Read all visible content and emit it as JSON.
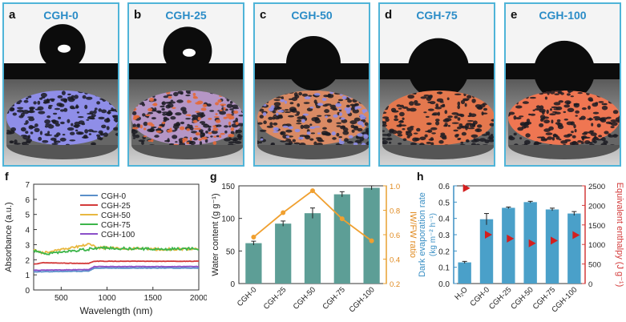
{
  "panels": [
    {
      "letter": "a",
      "title": "CGH-0",
      "color": "#8f8ee8",
      "contact_angle_deg": 135
    },
    {
      "letter": "b",
      "title": "CGH-25",
      "color": "#b596c6",
      "contact_angle_deg": 120
    },
    {
      "letter": "c",
      "title": "CGH-50",
      "color": "#d98a64",
      "contact_angle_deg": 90
    },
    {
      "letter": "d",
      "title": "CGH-75",
      "color": "#e4784e",
      "contact_angle_deg": 80
    },
    {
      "letter": "e",
      "title": "CGH-100",
      "color": "#ef7652",
      "contact_angle_deg": 75
    }
  ],
  "chart_f": {
    "letter": "f",
    "type": "line",
    "xlabel": "Wavelength (nm)",
    "ylabel": "Absorbance (a.u.)",
    "xlim": [
      200,
      2000
    ],
    "ylim": [
      0,
      7
    ],
    "xticks": [
      500,
      1000,
      1500,
      2000
    ],
    "yticks": [
      0,
      1,
      2,
      3,
      4,
      5,
      6,
      7
    ],
    "series": [
      {
        "name": "CGH-0",
        "color": "#5a8fc9",
        "x": [
          200,
          800,
          860,
          2000
        ],
        "y": [
          1.2,
          1.25,
          1.45,
          1.45
        ]
      },
      {
        "name": "CGH-25",
        "color": "#d33a3a",
        "x": [
          200,
          300,
          800,
          860,
          2000
        ],
        "y": [
          1.7,
          1.8,
          1.75,
          1.9,
          1.9
        ]
      },
      {
        "name": "CGH-50",
        "color": "#e8b840",
        "x": [
          200,
          300,
          500,
          800,
          900,
          1500,
          2000
        ],
        "y": [
          2.7,
          2.45,
          2.7,
          3.0,
          2.8,
          2.7,
          2.7
        ]
      },
      {
        "name": "CGH-75",
        "color": "#3cb54a",
        "x": [
          200,
          350,
          800,
          900,
          1200,
          1600,
          2000
        ],
        "y": [
          2.6,
          2.4,
          2.7,
          2.8,
          2.75,
          2.7,
          2.75
        ]
      },
      {
        "name": "CGH-100",
        "color": "#8a4fc8",
        "x": [
          200,
          800,
          860,
          2000
        ],
        "y": [
          1.3,
          1.35,
          1.55,
          1.55
        ]
      }
    ]
  },
  "chart_g": {
    "letter": "g",
    "type": "bar",
    "categories": [
      "CGH-0",
      "CGH-25",
      "CGH-50",
      "CGH-75",
      "CGH-100"
    ],
    "values": [
      62,
      92,
      108,
      137,
      147
    ],
    "errors": [
      3,
      4,
      8,
      4,
      3
    ],
    "ylabel": "Water content (g g⁻¹)",
    "ylim": [
      0,
      150
    ],
    "yticks": [
      0,
      50,
      100,
      150
    ],
    "y2label": "IW/FW ratio",
    "y2lim": [
      0.2,
      1.0
    ],
    "y2ticks": [
      "0.2",
      "0.4",
      "0.6",
      "0.8",
      "1.0"
    ],
    "line_values": [
      0.58,
      0.78,
      0.96,
      0.73,
      0.55
    ]
  },
  "chart_h": {
    "letter": "h",
    "type": "bar",
    "categories": [
      "H₂O",
      "CGH-0",
      "CGH-25",
      "CGH-50",
      "CGH-75",
      "CGH-100"
    ],
    "values": [
      0.13,
      0.395,
      0.465,
      0.5,
      0.455,
      0.43
    ],
    "errors": [
      0.006,
      0.035,
      0.005,
      0.005,
      0.008,
      0.012
    ],
    "ylabel": "Dark evaporation rate",
    "ylabel2": "(kg m⁻² h⁻¹)",
    "ylim": [
      0,
      0.6
    ],
    "yticks": [
      "0.0",
      "0.1",
      "0.2",
      "0.3",
      "0.4",
      "0.5",
      "0.6"
    ],
    "y2label": "Equivalent enthalpy (J g⁻¹)",
    "y2lim": [
      0,
      2500
    ],
    "y2ticks": [
      0,
      500,
      1000,
      1500,
      2000,
      2500
    ],
    "marker_values": [
      2440,
      1250,
      1150,
      1030,
      1100,
      1240
    ]
  }
}
